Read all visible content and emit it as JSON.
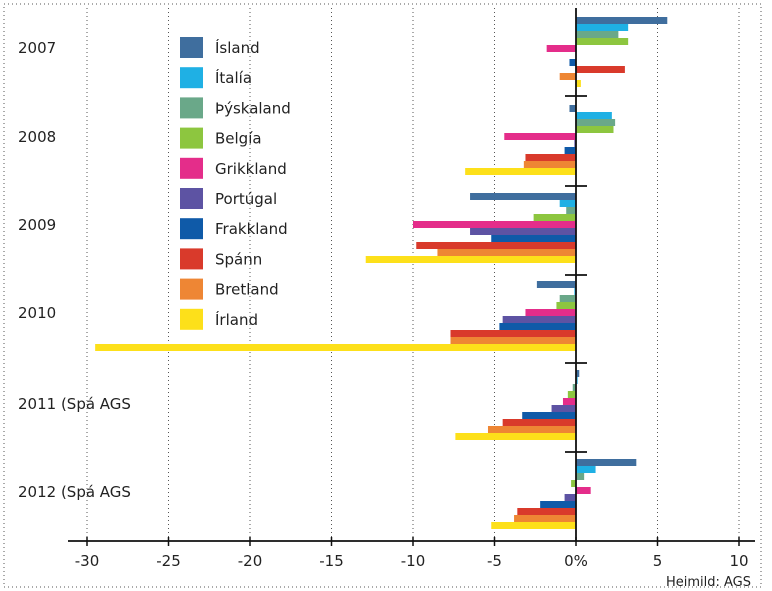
{
  "chart_data": {
    "type": "bar",
    "orientation": "horizontal",
    "categories": [
      "2007",
      "2008",
      "2009",
      "2010",
      "2011 (Spá AGS",
      "2012 (Spá AGS"
    ],
    "series": [
      {
        "name": "Ísland",
        "color": "#3f6e9e",
        "values": [
          5.6,
          -0.4,
          -6.5,
          -2.4,
          0.2,
          3.7
        ]
      },
      {
        "name": "Ítalía",
        "color": "#1fb0e4",
        "values": [
          3.2,
          2.2,
          -1.0,
          -0.1,
          0.1,
          1.2
        ]
      },
      {
        "name": "Þýskaland",
        "color": "#6aa889",
        "values": [
          2.6,
          2.4,
          -0.6,
          -1.0,
          -0.2,
          0.5
        ]
      },
      {
        "name": "Belgía",
        "color": "#8dc63f",
        "values": [
          3.2,
          2.3,
          -2.6,
          -1.2,
          -0.5,
          -0.3
        ]
      },
      {
        "name": "Grikkland",
        "color": "#e42d8a",
        "values": [
          -1.8,
          -4.4,
          -10.0,
          -3.1,
          -0.8,
          0.9
        ]
      },
      {
        "name": "Portúgal",
        "color": "#5d53a3",
        "values": [
          0.0,
          -0.1,
          -6.5,
          -4.5,
          -1.5,
          -0.7
        ]
      },
      {
        "name": "Frakkland",
        "color": "#0f5aa8",
        "values": [
          -0.4,
          -0.7,
          -5.2,
          -4.7,
          -3.3,
          -2.2
        ]
      },
      {
        "name": "Spánn",
        "color": "#d93a2b",
        "values": [
          3.0,
          -3.1,
          -9.8,
          -7.7,
          -4.5,
          -3.6
        ]
      },
      {
        "name": "Bretland",
        "color": "#ee8634",
        "values": [
          -1.0,
          -3.2,
          -8.5,
          -7.7,
          -5.4,
          -3.8
        ]
      },
      {
        "name": "Írland",
        "color": "#fde01a",
        "values": [
          0.3,
          -6.8,
          -12.9,
          -29.5,
          -7.4,
          -5.2
        ]
      }
    ],
    "xlim": [
      -30,
      10
    ],
    "xticks": [
      -30,
      -25,
      -20,
      -15,
      -10,
      -5,
      0,
      5,
      10
    ],
    "xtick_labels": [
      "-30",
      "-25",
      "-20",
      "-15",
      "-10",
      "-5",
      "0%",
      "5",
      "10"
    ],
    "grid": "vertical dotted",
    "legend_position": "top-left",
    "source": "Heimild: AGS"
  }
}
